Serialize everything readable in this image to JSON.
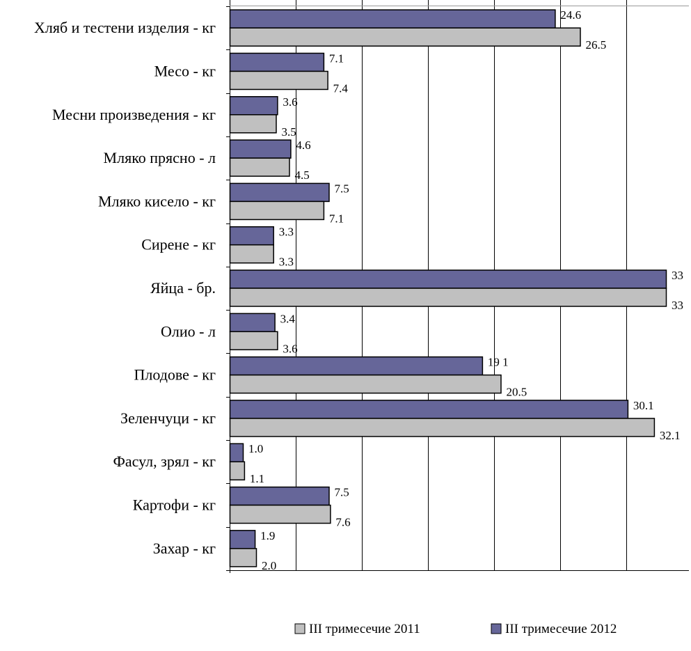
{
  "chart_data": {
    "type": "bar",
    "orientation": "horizontal",
    "title": "",
    "xlabel": "",
    "ylabel": "",
    "categories": [
      "Хляб и тестени изделия - кг",
      "Месо - кг",
      "Месни произведения  - кг",
      "Мляко прясно - л",
      "Мляко кисело - кг",
      "Сирене - кг",
      "Яйца - бр.",
      "Олио - л",
      "Плодове - кг",
      "Зеленчуци - кг",
      "Фасул, зрял - кг",
      "Картофи - кг",
      "Захар - кг"
    ],
    "series": [
      {
        "name": "III  тримесечие 2012",
        "color": "#666699",
        "values": [
          24.6,
          7.1,
          3.6,
          4.6,
          7.5,
          3.3,
          33,
          3.4,
          19.1,
          30.1,
          1.0,
          7.5,
          1.9
        ],
        "labels": [
          "24.6",
          "7.1",
          "3.6",
          "4.6",
          "7.5",
          "3.3",
          "33",
          "3.4",
          "19 1",
          "30.1",
          "1.0",
          "7.5",
          "1.9"
        ]
      },
      {
        "name": "III  тримесечие 2011",
        "color": "#c0c0c0",
        "values": [
          26.5,
          7.4,
          3.5,
          4.5,
          7.1,
          3.3,
          33,
          3.6,
          20.5,
          32.1,
          1.1,
          7.6,
          2.0
        ],
        "labels": [
          "26.5",
          "7.4",
          "3.5",
          "4.5",
          "7.1",
          "3.3",
          "33",
          "3.6",
          "20.5",
          "32.1",
          "1.1",
          "7.6",
          "2.0"
        ]
      }
    ],
    "xlim": [
      0,
      33
    ],
    "grid": true,
    "legend_position": "bottom",
    "legend_order": [
      1,
      0
    ]
  }
}
